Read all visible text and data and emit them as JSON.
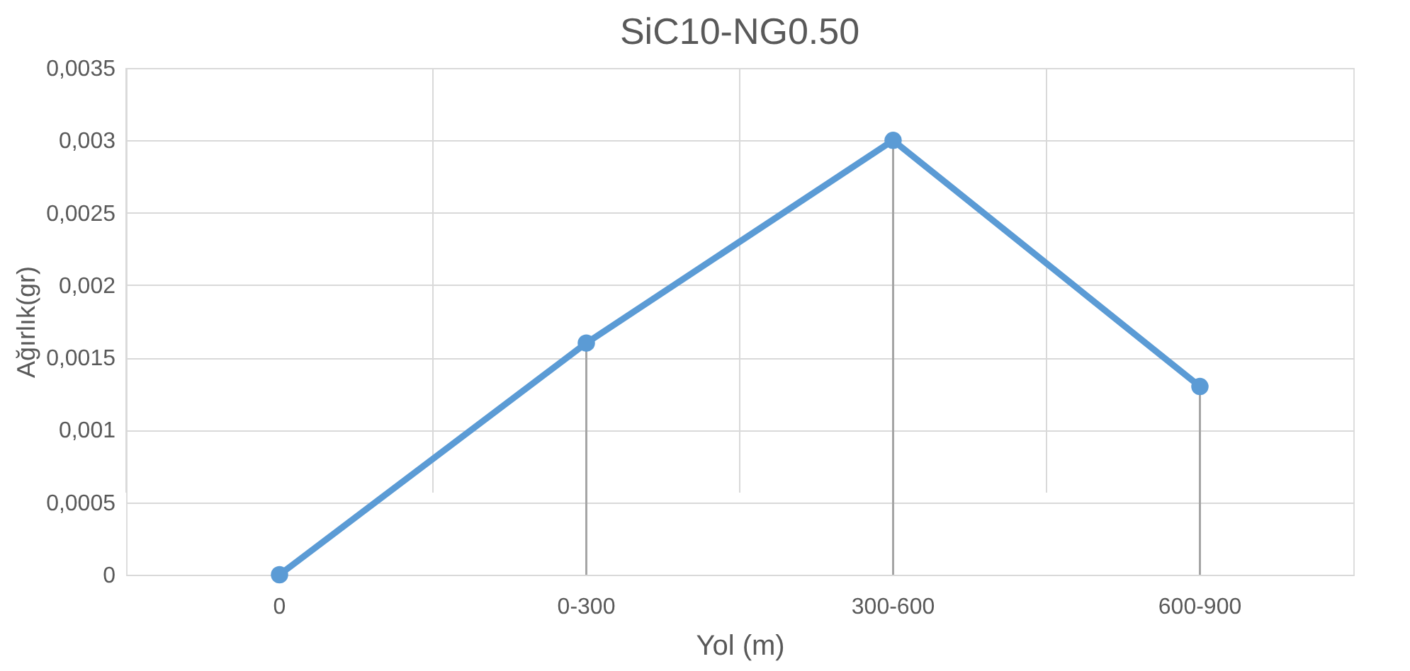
{
  "chart_data": {
    "type": "line",
    "title": "SiC10-NG0.50",
    "xlabel": "Yol (m)",
    "ylabel": "Ağırlık(gr)",
    "categories": [
      "0",
      "0-300",
      "300-600",
      "600-900"
    ],
    "series": [
      {
        "color": "#5b9bd5",
        "values": [
          0,
          0.0016,
          0.003,
          0.0013
        ],
        "errors": [
          null,
          [
            0,
            0.0016
          ],
          [
            0,
            0.003
          ],
          [
            0,
            0.0013
          ]
        ]
      }
    ],
    "ylim": [
      0,
      0.0035
    ],
    "yticks": [
      {
        "value": 0,
        "label": "0"
      },
      {
        "value": 0.0005,
        "label": "0,0005"
      },
      {
        "value": 0.001,
        "label": "0,001"
      },
      {
        "value": 0.0015,
        "label": "0,0015"
      },
      {
        "value": 0.002,
        "label": "0,002"
      },
      {
        "value": 0.0025,
        "label": "0,0025"
      },
      {
        "value": 0.003,
        "label": "0,003"
      },
      {
        "value": 0.0035,
        "label": "0,0035"
      }
    ],
    "grid": true,
    "marker": "circle",
    "line_style": "solid"
  }
}
